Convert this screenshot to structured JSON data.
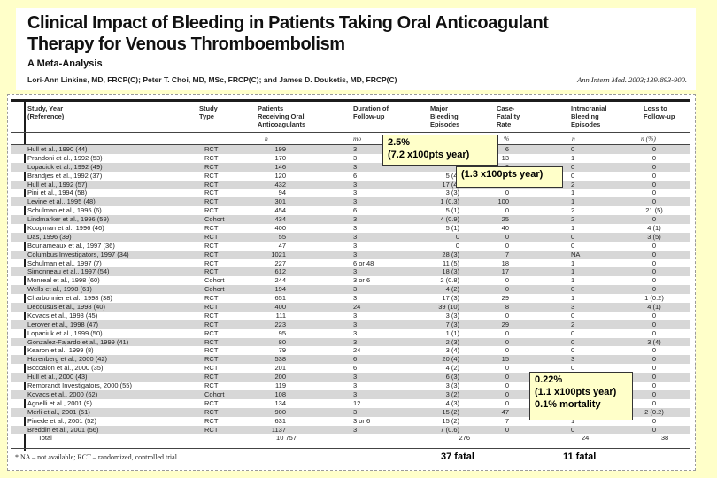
{
  "paper": {
    "title_line1": "Clinical Impact of Bleeding in Patients Taking Oral Anticoagulant",
    "title_line2": "Therapy for Venous Thromboembolism",
    "subtitle": "A Meta-Analysis",
    "authors": "Lori-Ann Linkins, MD, FRCP(C); Peter T. Choi, MD, MSc, FRCP(C); and James D. Douketis, MD, FRCP(C)",
    "citation": "Ann Intern Med. 2003;139:893-900."
  },
  "table": {
    "headers": {
      "study": "Study, Year\n(Reference)",
      "type": "Study\nType",
      "patients": "Patients\nReceiving Oral\nAnticoagulants",
      "duration": "Duration of\nFollow-up",
      "major": "Major\nBleeding\nEpisodes",
      "cfr": "Case-\nFatality\nRate",
      "ich": "Intracranial\nBleeding\nEpisodes",
      "loss": "Loss to\nFollow-up"
    },
    "units": {
      "n": "n",
      "mo": "mo",
      "cfr": "%",
      "ich": "n",
      "loss": "n (%)"
    },
    "rows": [
      [
        "Hull et al., 1990 (44)",
        "RCT",
        "199",
        "3",
        "",
        "6",
        "0",
        "0"
      ],
      [
        "Prandoni et al., 1992 (53)",
        "RCT",
        "170",
        "3",
        "",
        "13",
        "1",
        "0"
      ],
      [
        "Lopaciuk et al., 1992 (49)",
        "RCT",
        "146",
        "3",
        "0",
        "0",
        "0",
        "0"
      ],
      [
        "Brandjes et al., 1992 (37)",
        "RCT",
        "120",
        "6",
        "5 (4)",
        "",
        "0",
        "0"
      ],
      [
        "Hull et al., 1992 (57)",
        "RCT",
        "432",
        "3",
        "17 (4)",
        "18",
        "2",
        "0"
      ],
      [
        "Pini et al., 1994 (58)",
        "RCT",
        "94",
        "3",
        "3 (3)",
        "0",
        "1",
        "0"
      ],
      [
        "Levine et al., 1995 (48)",
        "RCT",
        "301",
        "3",
        "1 (0.3)",
        "100",
        "1",
        "0"
      ],
      [
        "Schulman et al., 1995 (6)",
        "RCT",
        "454",
        "6",
        "5 (1)",
        "0",
        "2",
        "21 (5)"
      ],
      [
        "Lindmarker et al., 1996 (59)",
        "Cohort",
        "434",
        "3",
        "4 (0.9)",
        "25",
        "2",
        "0"
      ],
      [
        "Koopman et al., 1996 (46)",
        "RCT",
        "400",
        "3",
        "5 (1)",
        "40",
        "1",
        "4 (1)"
      ],
      [
        "Das, 1996 (39)",
        "RCT",
        "55",
        "3",
        "0",
        "0",
        "0",
        "3 (5)"
      ],
      [
        "Bounameaux et al., 1997 (36)",
        "RCT",
        "47",
        "3",
        "0",
        "0",
        "0",
        "0"
      ],
      [
        "Columbus Investigators, 1997 (34)",
        "RCT",
        "1021",
        "3",
        "28 (3)",
        "7",
        "NA",
        "0"
      ],
      [
        "Schulman et al., 1997 (7)",
        "RCT",
        "227",
        "6 or 48",
        "11 (5)",
        "18",
        "1",
        "0"
      ],
      [
        "Simonneau et al., 1997 (54)",
        "RCT",
        "612",
        "3",
        "18 (3)",
        "17",
        "1",
        "0"
      ],
      [
        "Monreal et al., 1998 (60)",
        "Cohort",
        "244",
        "3 or 6",
        "2 (0.8)",
        "0",
        "1",
        "0"
      ],
      [
        "Wells et al., 1998 (61)",
        "Cohort",
        "194",
        "3",
        "4 (2)",
        "0",
        "0",
        "0"
      ],
      [
        "Charbonnier et al., 1998 (38)",
        "RCT",
        "651",
        "3",
        "17 (3)",
        "29",
        "1",
        "1 (0.2)"
      ],
      [
        "Decousus et al., 1998 (40)",
        "RCT",
        "400",
        "24",
        "39 (10)",
        "8",
        "3",
        "4 (1)"
      ],
      [
        "Kovacs et al., 1998 (45)",
        "RCT",
        "111",
        "3",
        "3 (3)",
        "0",
        "0",
        "0"
      ],
      [
        "Leroyer et al., 1998 (47)",
        "RCT",
        "223",
        "3",
        "7 (3)",
        "29",
        "2",
        "0"
      ],
      [
        "Lopaciuk et al., 1999 (50)",
        "RCT",
        "95",
        "3",
        "1 (1)",
        "0",
        "0",
        "0"
      ],
      [
        "Gonzalez-Fajardo et al., 1999 (41)",
        "RCT",
        "80",
        "3",
        "2 (3)",
        "0",
        "0",
        "3 (4)"
      ],
      [
        "Kearon et al., 1999 (8)",
        "RCT",
        "79",
        "24",
        "3 (4)",
        "0",
        "0",
        "0"
      ],
      [
        "Harenberg et al., 2000 (42)",
        "RCT",
        "538",
        "6",
        "20 (4)",
        "15",
        "3",
        "0"
      ],
      [
        "Boccalon et al., 2000 (35)",
        "RCT",
        "201",
        "6",
        "4 (2)",
        "0",
        "0",
        "0"
      ],
      [
        "Hull et al., 2000 (43)",
        "RCT",
        "200",
        "3",
        "6 (3)",
        "0",
        "",
        "0"
      ],
      [
        "Rembrandt Investigators, 2000 (55)",
        "RCT",
        "119",
        "3",
        "3 (3)",
        "0",
        "",
        "0"
      ],
      [
        "Kovacs et al., 2000 (62)",
        "Cohort",
        "108",
        "3",
        "3 (2)",
        "0",
        "",
        "0"
      ],
      [
        "Agnelli et al., 2001 (9)",
        "RCT",
        "134",
        "12",
        "4 (3)",
        "0",
        "",
        "0"
      ],
      [
        "Merli et al., 2001 (51)",
        "RCT",
        "900",
        "3",
        "15 (2)",
        "47",
        "",
        "2 (0.2)"
      ],
      [
        "Pinede et al., 2001 (52)",
        "RCT",
        "631",
        "3 or 6",
        "15 (2)",
        "7",
        "1",
        "0"
      ],
      [
        "Breddin et al., 2001 (56)",
        "RCT",
        "1137",
        "3",
        "7 (0.6)",
        "0",
        "0",
        "0"
      ]
    ],
    "total_row": [
      "Total",
      "",
      "10 757",
      "",
      "276",
      "",
      "24",
      "38"
    ],
    "footnote": "* NA – not available; RCT – randomized, controlled trial."
  },
  "annotations": {
    "callout_major_rate_line1": "2.5%",
    "callout_major_rate_line2": "(7.2 x100pts year)",
    "callout_rate2_line1": "(1.3 x100pts year)",
    "callout_ich_line1": "0.22%",
    "callout_ich_line2": "(1.1 x100pts year)",
    "callout_ich_line3": "0.1% mortality",
    "fatal_major": "37 fatal",
    "fatal_ich": "11 fatal"
  },
  "colors": {
    "slide_bg": "#FFFFC9",
    "stripe": "#d7d7d7",
    "callout_bg": "#FFFFC9"
  }
}
